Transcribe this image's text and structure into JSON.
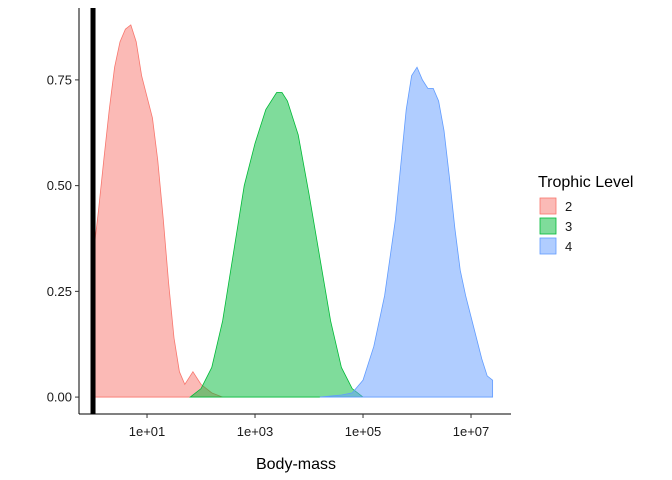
{
  "chart_data": {
    "type": "area",
    "subtype": "density",
    "xlabel": "Body-mass",
    "ylabel": "",
    "x_scale": "log10",
    "xlim": [
      0.55,
      55000000
    ],
    "ylim": [
      -0.04,
      0.92
    ],
    "x_ticks": [
      {
        "value": 10,
        "label": "1e+01"
      },
      {
        "value": 1000,
        "label": "1e+03"
      },
      {
        "value": 100000,
        "label": "1e+05"
      },
      {
        "value": 10000000,
        "label": "1e+07"
      }
    ],
    "y_ticks": [
      {
        "value": 0,
        "label": "0.00"
      },
      {
        "value": 0.25,
        "label": "0.25"
      },
      {
        "value": 0.5,
        "label": "0.50"
      },
      {
        "value": 0.75,
        "label": "0.75"
      }
    ],
    "grid": false,
    "legend_position": "right",
    "legend_title": "Trophic Level",
    "vertical_line": {
      "x": 1,
      "color": "#000000"
    },
    "series": [
      {
        "name": "2",
        "fill": "#F8766D",
        "points": [
          [
            1.0,
            0.0
          ],
          [
            1.0,
            0.33
          ],
          [
            1.26,
            0.44
          ],
          [
            1.58,
            0.56
          ],
          [
            2.0,
            0.68
          ],
          [
            2.51,
            0.78
          ],
          [
            3.16,
            0.84
          ],
          [
            3.98,
            0.87
          ],
          [
            5.01,
            0.88
          ],
          [
            6.31,
            0.84
          ],
          [
            7.94,
            0.76
          ],
          [
            10.0,
            0.71
          ],
          [
            12.6,
            0.66
          ],
          [
            15.8,
            0.56
          ],
          [
            20.0,
            0.42
          ],
          [
            25.1,
            0.27
          ],
          [
            31.6,
            0.14
          ],
          [
            39.8,
            0.06
          ],
          [
            50.1,
            0.03
          ],
          [
            63.1,
            0.05
          ],
          [
            70.8,
            0.06
          ],
          [
            79.4,
            0.05
          ],
          [
            100.0,
            0.03
          ],
          [
            158.0,
            0.01
          ],
          [
            251.0,
            0.0
          ]
        ]
      },
      {
        "name": "3",
        "fill": "#00BA38",
        "points": [
          [
            63.1,
            0.0
          ],
          [
            100.0,
            0.02
          ],
          [
            158.0,
            0.07
          ],
          [
            251.0,
            0.18
          ],
          [
            398.0,
            0.34
          ],
          [
            631.0,
            0.5
          ],
          [
            1000.0,
            0.6
          ],
          [
            1585.0,
            0.68
          ],
          [
            2512.0,
            0.72
          ],
          [
            3162.0,
            0.72
          ],
          [
            3981.0,
            0.7
          ],
          [
            6310.0,
            0.62
          ],
          [
            10000.0,
            0.48
          ],
          [
            15850.0,
            0.33
          ],
          [
            25120.0,
            0.18
          ],
          [
            39810.0,
            0.07
          ],
          [
            63100.0,
            0.02
          ],
          [
            100000.0,
            0.0
          ]
        ]
      },
      {
        "name": "4",
        "fill": "#619CFF",
        "points": [
          [
            15850.0,
            0.0
          ],
          [
            39810.0,
            0.005
          ],
          [
            63100.0,
            0.01
          ],
          [
            100000.0,
            0.04
          ],
          [
            158500.0,
            0.12
          ],
          [
            251200.0,
            0.24
          ],
          [
            398100.0,
            0.42
          ],
          [
            501200.0,
            0.55
          ],
          [
            631000.0,
            0.68
          ],
          [
            794300.0,
            0.76
          ],
          [
            1000000.0,
            0.78
          ],
          [
            1259000.0,
            0.75
          ],
          [
            1585000.0,
            0.73
          ],
          [
            1995000.0,
            0.73
          ],
          [
            2512000.0,
            0.7
          ],
          [
            3162000.0,
            0.63
          ],
          [
            3981000.0,
            0.52
          ],
          [
            5012000.0,
            0.4
          ],
          [
            6310000.0,
            0.3
          ],
          [
            7943000.0,
            0.24
          ],
          [
            10000000.0,
            0.19
          ],
          [
            12590000.0,
            0.14
          ],
          [
            15850000.0,
            0.09
          ],
          [
            19950000.0,
            0.05
          ],
          [
            25120000.0,
            0.04
          ],
          [
            25120000.0,
            0.0
          ]
        ]
      }
    ]
  }
}
